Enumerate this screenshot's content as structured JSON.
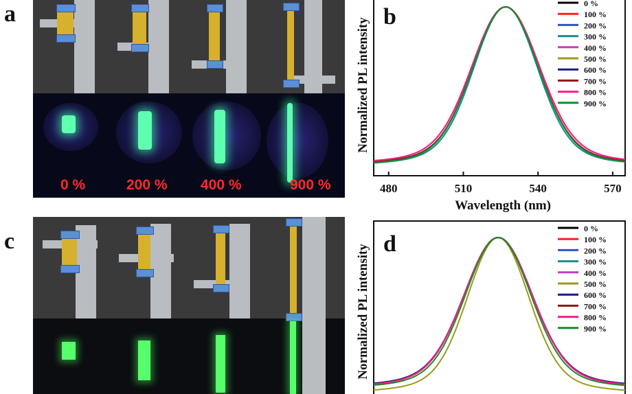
{
  "panels": {
    "a": {
      "letter": "a",
      "strain_labels": [
        "0 %",
        "200 %",
        "400 %",
        "900 %"
      ]
    },
    "b": {
      "letter": "b"
    },
    "c": {
      "letter": "c"
    },
    "d": {
      "letter": "d"
    }
  },
  "chart_data": [
    {
      "panel": "b",
      "type": "line",
      "xlabel": "Wavelength (nm)",
      "ylabel": "Normalized PL intensity",
      "xlim": [
        474,
        575
      ],
      "ylim": [
        0,
        1
      ],
      "xticks": [
        480,
        510,
        540,
        570
      ],
      "grid": false,
      "legend_position": "top-right",
      "peak_nm": 527,
      "series": [
        {
          "name": "0 %",
          "color": "#000000",
          "fwhm": 30,
          "tail": 0.09
        },
        {
          "name": "100 %",
          "color": "#ff2020",
          "fwhm": 31,
          "tail": 0.1
        },
        {
          "name": "200 %",
          "color": "#3050d0",
          "fwhm": 30,
          "tail": 0.09
        },
        {
          "name": "300 %",
          "color": "#138f8f",
          "fwhm": 29,
          "tail": 0.08
        },
        {
          "name": "400 %",
          "color": "#c040c0",
          "fwhm": 30,
          "tail": 0.09
        },
        {
          "name": "500 %",
          "color": "#9a9a1a",
          "fwhm": 30,
          "tail": 0.09
        },
        {
          "name": "600 %",
          "color": "#1a1a80",
          "fwhm": 30,
          "tail": 0.09
        },
        {
          "name": "700 %",
          "color": "#8a1a1a",
          "fwhm": 30,
          "tail": 0.09
        },
        {
          "name": "800 %",
          "color": "#ff1a8a",
          "fwhm": 31,
          "tail": 0.1
        },
        {
          "name": "900 %",
          "color": "#1a8a2a",
          "fwhm": 30,
          "tail": 0.08
        }
      ]
    },
    {
      "panel": "d",
      "type": "line",
      "xlabel": "",
      "ylabel": "Normalized PL intensity",
      "xlim": [
        474,
        575
      ],
      "ylim": [
        0,
        1
      ],
      "grid": false,
      "legend_position": "top-right",
      "peak_nm": 524,
      "series": [
        {
          "name": "0 %",
          "color": "#000000",
          "fwhm": 31,
          "tail": 0.12
        },
        {
          "name": "100 %",
          "color": "#ff2020",
          "fwhm": 31,
          "tail": 0.12
        },
        {
          "name": "200 %",
          "color": "#3050d0",
          "fwhm": 31,
          "tail": 0.12
        },
        {
          "name": "300 %",
          "color": "#138f8f",
          "fwhm": 31,
          "tail": 0.12
        },
        {
          "name": "400 %",
          "color": "#c040c0",
          "fwhm": 31,
          "tail": 0.12
        },
        {
          "name": "500 %",
          "color": "#9a9a1a",
          "fwhm": 28,
          "tail": 0.06
        },
        {
          "name": "600 %",
          "color": "#1a1a80",
          "fwhm": 31,
          "tail": 0.13
        },
        {
          "name": "700 %",
          "color": "#8a1a1a",
          "fwhm": 31,
          "tail": 0.12
        },
        {
          "name": "800 %",
          "color": "#ff1a8a",
          "fwhm": 31,
          "tail": 0.12
        },
        {
          "name": "900 %",
          "color": "#1a8a2a",
          "fwhm": 30,
          "tail": 0.11
        }
      ]
    }
  ]
}
